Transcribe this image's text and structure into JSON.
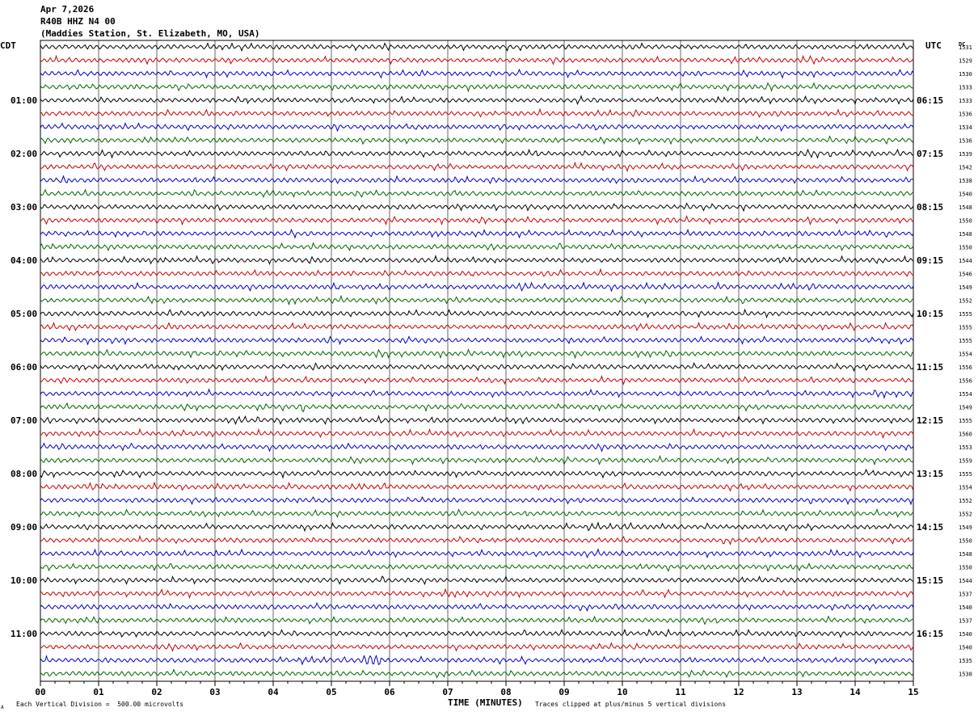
{
  "header": {
    "date": "Apr 7,2026",
    "channel": "R40B HHZ N4 00",
    "station": "(Maddies Station, St. Elizabeth, MO, USA)"
  },
  "left_label": "CDT",
  "right_label": "UTC",
  "dc_label": "DC",
  "footer": {
    "scale_note": "Each Vertical Division =  500.00 microvolts",
    "x_title": "TIME (MINUTES)",
    "clip_note": "Traces clipped at plus/minus 5 vertical divisions",
    "corner_mark": "A"
  },
  "colors": {
    "trace_cycle": [
      "#000000",
      "#cc0000",
      "#0000cc",
      "#006600"
    ],
    "grid": "#000000",
    "background": "#ffffff"
  },
  "chart_data": {
    "type": "line",
    "description_type": "helicorder",
    "xlabel": "TIME (MINUTES)",
    "xlim": [
      0,
      15
    ],
    "x_ticks": [
      "00",
      "01",
      "02",
      "03",
      "04",
      "05",
      "06",
      "07",
      "08",
      "09",
      "10",
      "11",
      "12",
      "13",
      "14",
      "15"
    ],
    "cdt_labels": [
      "01:00",
      "02:00",
      "03:00",
      "04:00",
      "05:00",
      "06:00",
      "07:00",
      "08:00",
      "09:00",
      "10:00",
      "11:00"
    ],
    "utc_labels": [
      "06:15",
      "07:15",
      "08:15",
      "09:15",
      "10:15",
      "11:15",
      "12:15",
      "13:15",
      "14:15",
      "15:15",
      "16:15"
    ],
    "dc_offsets": [
      1531,
      1529,
      1530,
      1533,
      1533,
      1536,
      1534,
      1536,
      1539,
      1542,
      1538,
      1540,
      1548,
      1550,
      1548,
      1550,
      1544,
      1546,
      1549,
      1552,
      1555,
      1555,
      1555,
      1554,
      1556,
      1556,
      1554,
      1549,
      1555,
      1560,
      1553,
      1559,
      1555,
      1554,
      1552,
      1552,
      1549,
      1550,
      1548,
      1550,
      1544,
      1537,
      1540,
      1537,
      1540,
      1540,
      1535,
      1538
    ],
    "events": [
      {
        "trace_index": 27,
        "minute": 4.5,
        "amplitude": "spike"
      },
      {
        "trace_index": 46,
        "minute": 5.7,
        "amplitude": "burst"
      }
    ]
  }
}
